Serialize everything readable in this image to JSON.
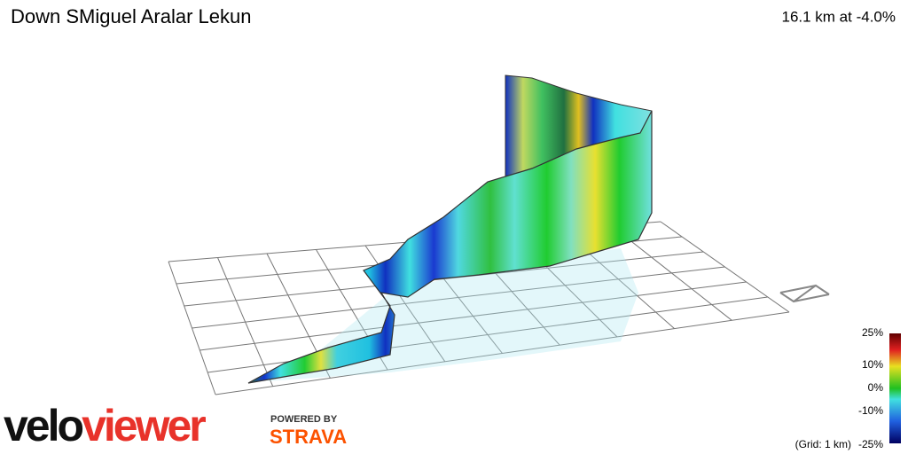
{
  "header": {
    "title": "Down SMiguel Aralar Lekun",
    "summary": "16.1 km at -4.0%"
  },
  "legend": {
    "labels": [
      "25%",
      "10%",
      "0%",
      "-10%",
      "-25%"
    ],
    "grid_note": "(Grid: 1 km)"
  },
  "logo": {
    "velo": "velo",
    "viewer": "viewer",
    "powered": "POWERED BY",
    "strava": "STRAVA"
  }
}
